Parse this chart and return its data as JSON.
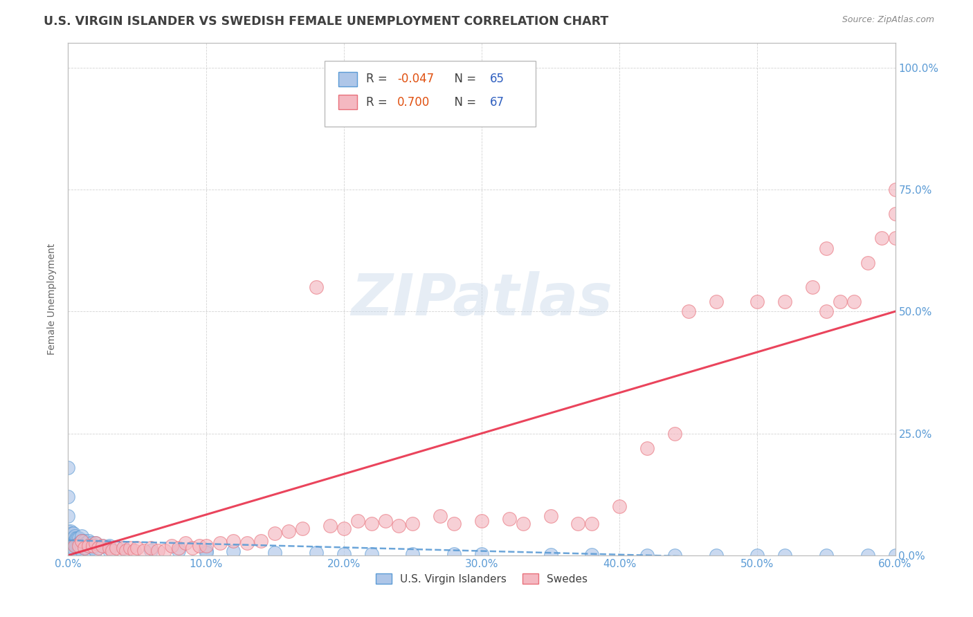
{
  "title": "U.S. VIRGIN ISLANDER VS SWEDISH FEMALE UNEMPLOYMENT CORRELATION CHART",
  "source": "Source: ZipAtlas.com",
  "ylabel": "Female Unemployment",
  "xlim": [
    0,
    0.6
  ],
  "ylim": [
    0,
    1.05
  ],
  "legend_label1": "U.S. Virgin Islanders",
  "legend_label2": "Swedes",
  "r1": "-0.047",
  "n1": "65",
  "r2": "0.700",
  "n2": "67",
  "watermark": "ZIPatlas",
  "background_color": "#ffffff",
  "plot_bg_color": "#ffffff",
  "grid_color": "#c8c8c8",
  "scatter1_color": "#aec6e8",
  "scatter1_edge": "#5b9bd5",
  "scatter2_color": "#f4b8c1",
  "scatter2_edge": "#e8707a",
  "line1_color": "#5b9bd5",
  "line2_color": "#e8304a",
  "title_color": "#404040",
  "source_color": "#888888",
  "axis_color": "#5b9bd5",
  "r_color": "#e05010",
  "n_color": "#3060c0",
  "vi_x": [
    0.0,
    0.0,
    0.0,
    0.0,
    0.0,
    0.002,
    0.003,
    0.003,
    0.004,
    0.004,
    0.004,
    0.004,
    0.005,
    0.005,
    0.005,
    0.005,
    0.005,
    0.006,
    0.006,
    0.007,
    0.007,
    0.008,
    0.008,
    0.008,
    0.009,
    0.01,
    0.01,
    0.01,
    0.01,
    0.012,
    0.012,
    0.013,
    0.015,
    0.015,
    0.015,
    0.017,
    0.018,
    0.02,
    0.02,
    0.025,
    0.03,
    0.03,
    0.04,
    0.06,
    0.08,
    0.1,
    0.1,
    0.12,
    0.15,
    0.18,
    0.2,
    0.22,
    0.25,
    0.28,
    0.3,
    0.35,
    0.38,
    0.42,
    0.44,
    0.47,
    0.5,
    0.52,
    0.55,
    0.58,
    0.6
  ],
  "vi_y": [
    0.18,
    0.12,
    0.08,
    0.05,
    0.02,
    0.05,
    0.045,
    0.035,
    0.045,
    0.035,
    0.025,
    0.015,
    0.04,
    0.03,
    0.025,
    0.02,
    0.01,
    0.035,
    0.02,
    0.035,
    0.02,
    0.035,
    0.025,
    0.015,
    0.025,
    0.04,
    0.03,
    0.02,
    0.01,
    0.03,
    0.015,
    0.025,
    0.03,
    0.02,
    0.01,
    0.025,
    0.015,
    0.025,
    0.01,
    0.02,
    0.02,
    0.01,
    0.015,
    0.01,
    0.01,
    0.01,
    0.005,
    0.008,
    0.005,
    0.005,
    0.003,
    0.003,
    0.003,
    0.002,
    0.002,
    0.001,
    0.001,
    0.0,
    0.0,
    0.0,
    0.0,
    0.0,
    0.0,
    0.0,
    0.0
  ],
  "sw_x": [
    0.005,
    0.008,
    0.01,
    0.012,
    0.015,
    0.018,
    0.02,
    0.022,
    0.025,
    0.03,
    0.032,
    0.035,
    0.04,
    0.042,
    0.045,
    0.048,
    0.05,
    0.055,
    0.06,
    0.065,
    0.07,
    0.075,
    0.08,
    0.085,
    0.09,
    0.095,
    0.1,
    0.11,
    0.12,
    0.13,
    0.14,
    0.15,
    0.16,
    0.17,
    0.18,
    0.19,
    0.2,
    0.21,
    0.22,
    0.23,
    0.24,
    0.25,
    0.27,
    0.28,
    0.3,
    0.32,
    0.33,
    0.35,
    0.37,
    0.38,
    0.4,
    0.42,
    0.44,
    0.45,
    0.47,
    0.5,
    0.52,
    0.54,
    0.55,
    0.55,
    0.56,
    0.57,
    0.58,
    0.59,
    0.6,
    0.6,
    0.6
  ],
  "sw_y": [
    0.02,
    0.02,
    0.03,
    0.015,
    0.02,
    0.02,
    0.025,
    0.015,
    0.02,
    0.015,
    0.01,
    0.015,
    0.015,
    0.01,
    0.015,
    0.01,
    0.015,
    0.01,
    0.015,
    0.01,
    0.01,
    0.02,
    0.015,
    0.025,
    0.015,
    0.02,
    0.02,
    0.025,
    0.03,
    0.025,
    0.03,
    0.045,
    0.05,
    0.055,
    0.55,
    0.06,
    0.055,
    0.07,
    0.065,
    0.07,
    0.06,
    0.065,
    0.08,
    0.065,
    0.07,
    0.075,
    0.065,
    0.08,
    0.065,
    0.065,
    0.1,
    0.22,
    0.25,
    0.5,
    0.52,
    0.52,
    0.52,
    0.55,
    0.63,
    0.5,
    0.52,
    0.52,
    0.6,
    0.65,
    0.7,
    0.75,
    0.65
  ]
}
